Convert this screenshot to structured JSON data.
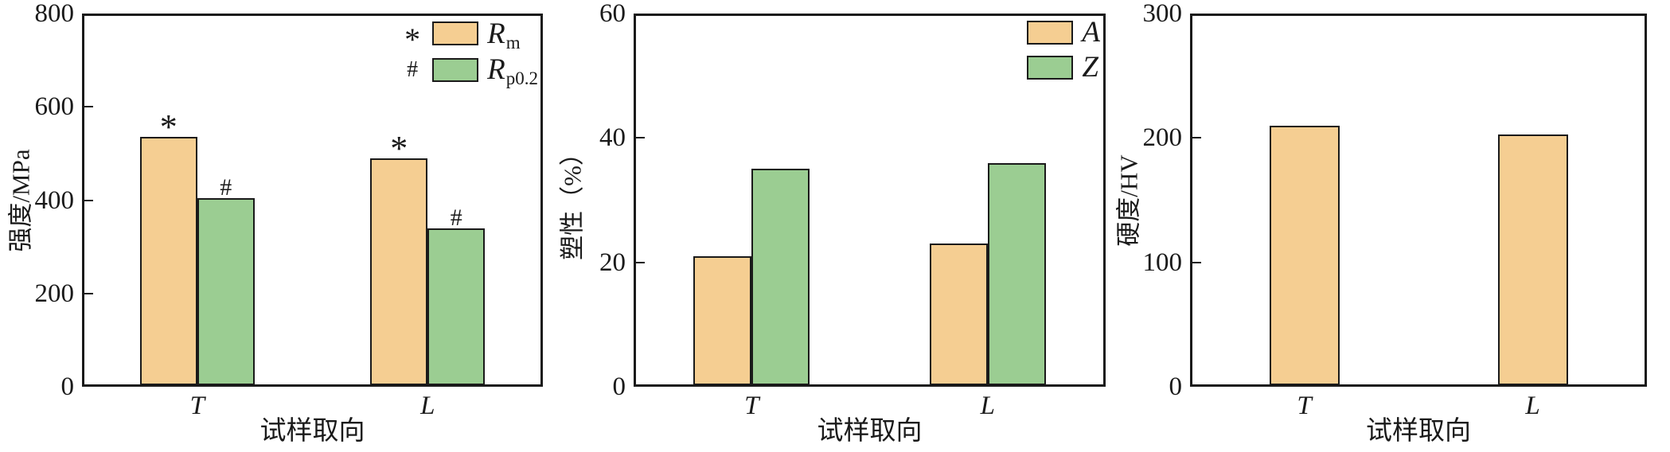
{
  "figure": {
    "background": "#ffffff"
  },
  "colors": {
    "axis": "#1a1a1a",
    "text": "#1a1a1a",
    "series_orange": "#F5CE92",
    "series_green": "#9BCD92"
  },
  "chart_data": [
    {
      "type": "bar",
      "panel": "strength",
      "title": "",
      "ylabel": "强度/MPa",
      "xlabel": "试样取向",
      "categories": [
        "T",
        "L"
      ],
      "ylim": [
        0,
        800
      ],
      "yticks": [
        0,
        200,
        400,
        600,
        800
      ],
      "grid": false,
      "legend": {
        "position": "top-right-inside",
        "frame": false
      },
      "series": [
        {
          "name": "Rm",
          "label_base": "R",
          "label_sub": "m",
          "marker": "*",
          "color": "#F5CE92",
          "values": [
            535,
            490
          ]
        },
        {
          "name": "Rp0.2",
          "label_base": "R",
          "label_sub": "p0.2",
          "marker": "#",
          "color": "#9BCD92",
          "values": [
            405,
            340
          ]
        }
      ]
    },
    {
      "type": "bar",
      "panel": "plasticity",
      "title": "",
      "ylabel": "塑性（%）",
      "xlabel": "试样取向",
      "categories": [
        "T",
        "L"
      ],
      "ylim": [
        0,
        60
      ],
      "yticks": [
        0,
        20,
        40,
        60
      ],
      "grid": false,
      "legend": {
        "position": "top-right-inside",
        "frame": false
      },
      "series": [
        {
          "name": "A",
          "label_base": "A",
          "label_sub": "",
          "marker": "",
          "color": "#F5CE92",
          "values": [
            21,
            23
          ]
        },
        {
          "name": "Z",
          "label_base": "Z",
          "label_sub": "",
          "marker": "",
          "color": "#9BCD92",
          "values": [
            35,
            36
          ]
        }
      ]
    },
    {
      "type": "bar",
      "panel": "hardness",
      "title": "",
      "ylabel": "硬度/HV",
      "xlabel": "试样取向",
      "categories": [
        "T",
        "L"
      ],
      "ylim": [
        0,
        300
      ],
      "yticks": [
        0,
        100,
        200,
        300
      ],
      "grid": false,
      "legend": null,
      "series": [
        {
          "name": "HV",
          "label_base": "",
          "label_sub": "",
          "marker": "",
          "color": "#F5CE92",
          "values": [
            210,
            203
          ]
        }
      ]
    }
  ]
}
